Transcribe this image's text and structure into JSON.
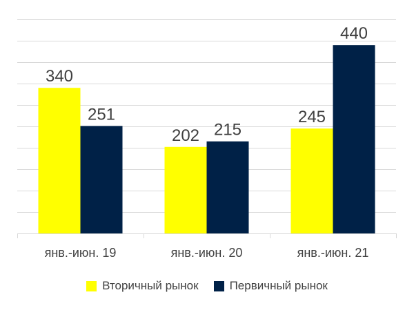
{
  "chart_data": {
    "type": "bar",
    "categories": [
      "янв.-июн. 19",
      "янв.-июн. 20",
      "янв.-июн. 21"
    ],
    "series": [
      {
        "name": "Вторичный рынок",
        "values": [
          340,
          202,
          245
        ],
        "color": "#FFFF00"
      },
      {
        "name": "Первичный рынок",
        "values": [
          251,
          215,
          440
        ],
        "color": "#002147"
      }
    ],
    "ylim": [
      0,
      500
    ],
    "grid": true,
    "legend_position": "bottom",
    "data_labels": true
  }
}
